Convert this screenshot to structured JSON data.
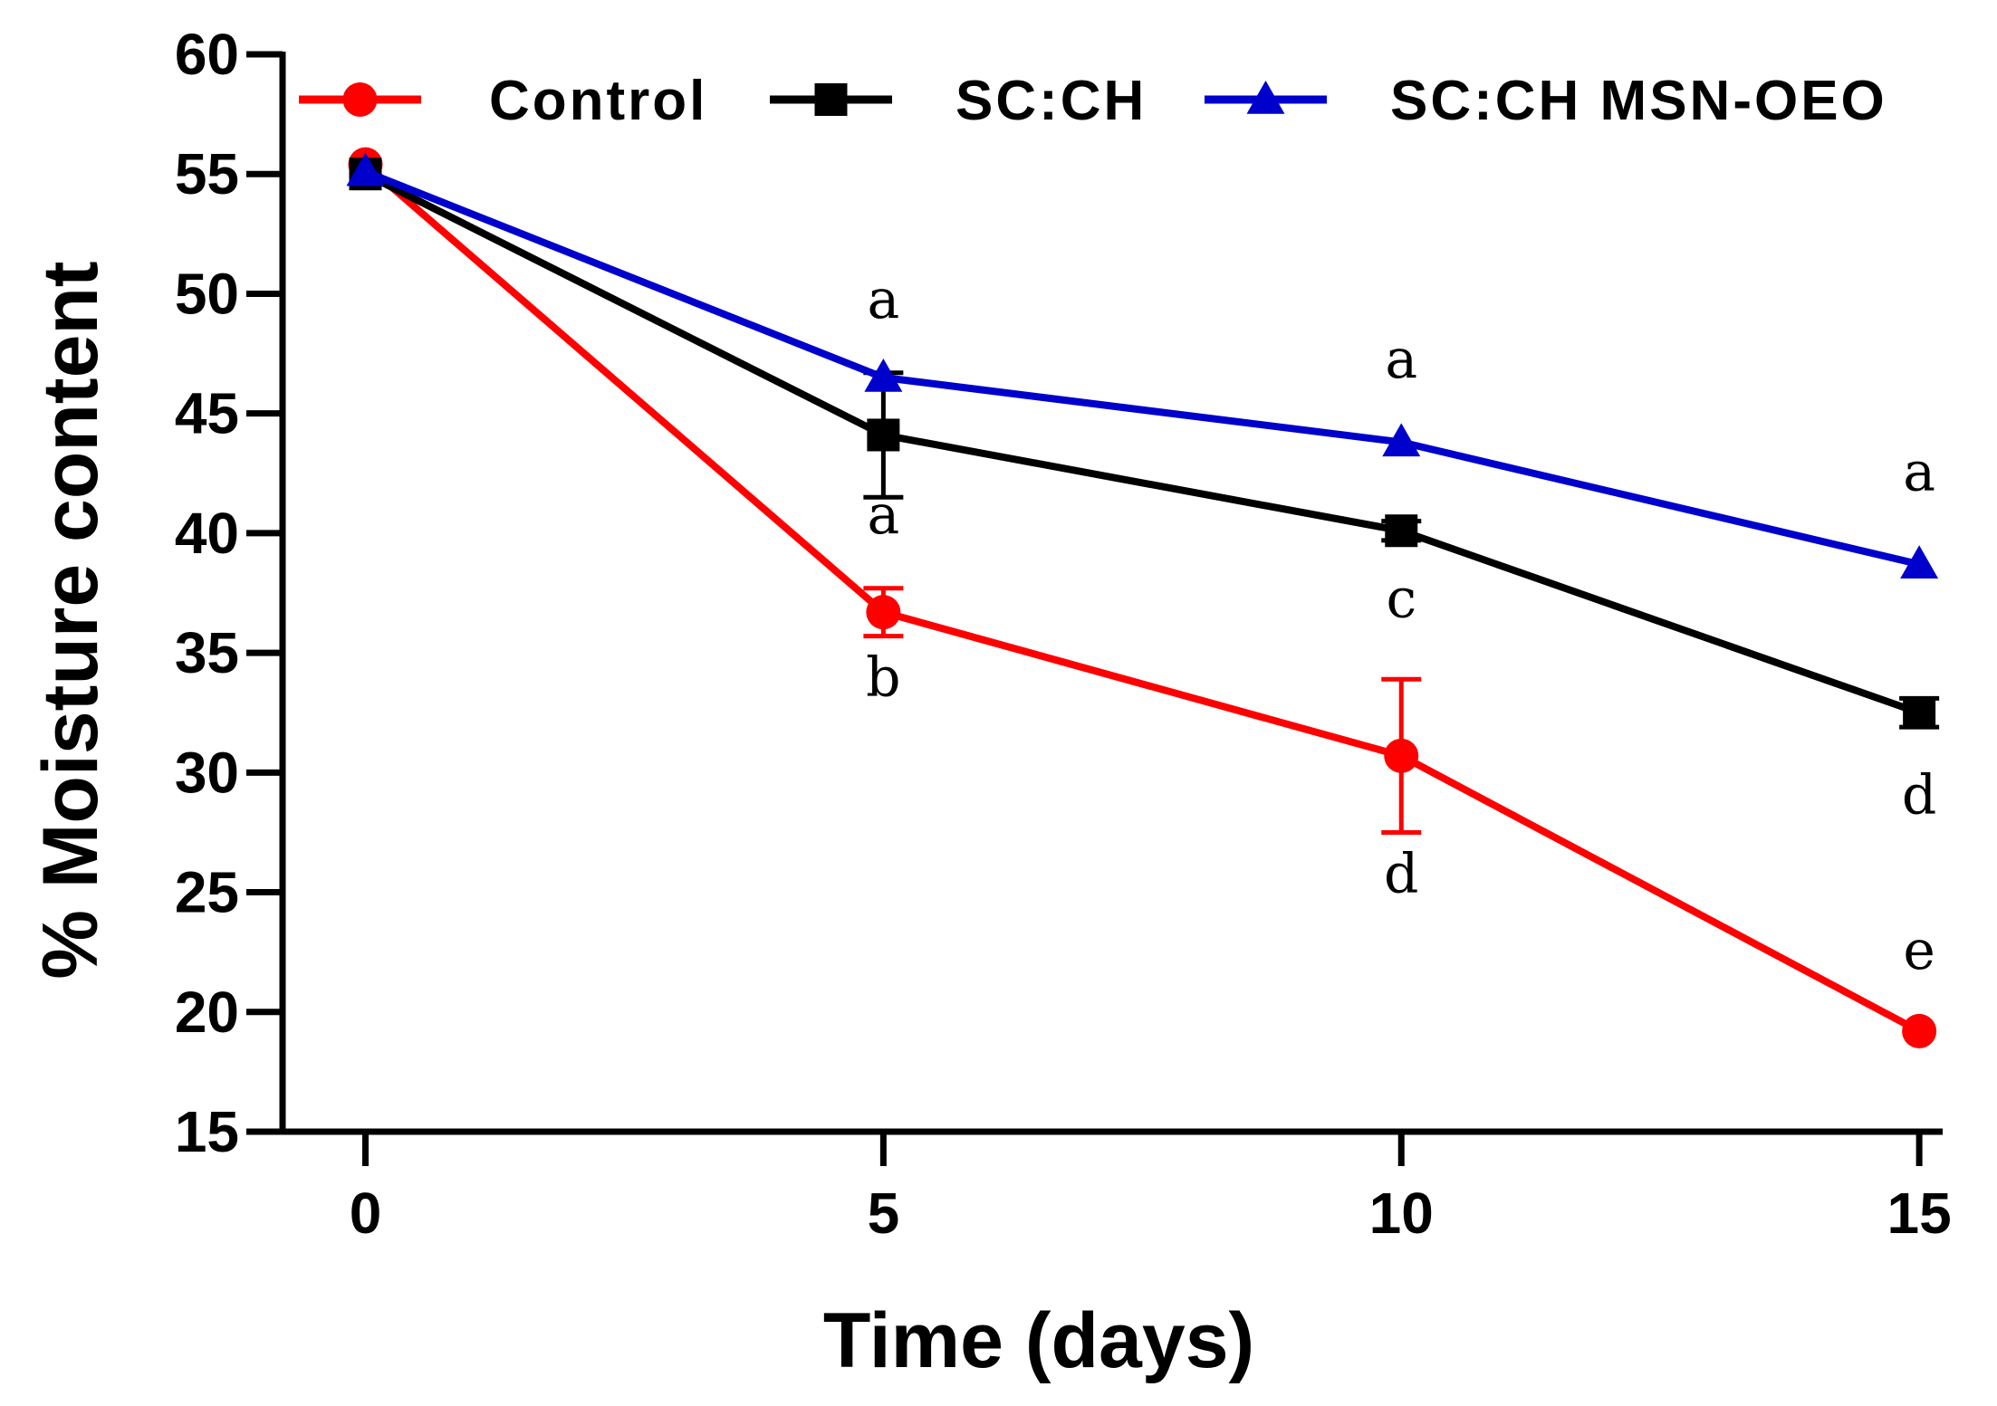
{
  "chart_data": {
    "type": "line",
    "title": "",
    "xlabel": "Time (days)",
    "ylabel": "% Moisture content",
    "x": [
      0,
      5,
      10,
      15
    ],
    "xticks": [
      "0",
      "5",
      "10",
      "15"
    ],
    "xlim": [
      -0.8,
      15.2
    ],
    "ylim": [
      15,
      60
    ],
    "yticks": [
      "15",
      "20",
      "25",
      "30",
      "35",
      "40",
      "45",
      "50",
      "55",
      "60"
    ],
    "grid": false,
    "legend_position": "top",
    "series": [
      {
        "name": "Control",
        "color": "#ff0000",
        "marker": "circle",
        "values": [
          55.4,
          36.7,
          30.7,
          19.2
        ],
        "errors": [
          0,
          1.0,
          3.2,
          0
        ],
        "letters": [
          {
            "x": 5,
            "y": 33.2,
            "text": "b"
          },
          {
            "x": 10,
            "y": 25.0,
            "text": "d"
          },
          {
            "x": 15,
            "y": 21.8,
            "text": "e"
          }
        ]
      },
      {
        "name": "SC:CH",
        "color": "#000000",
        "marker": "square",
        "values": [
          55.0,
          44.1,
          40.1,
          32.5
        ],
        "errors": [
          0,
          2.6,
          0.4,
          0.6
        ],
        "letters": [
          {
            "x": 5,
            "y": 40.0,
            "text": "a"
          },
          {
            "x": 10,
            "y": 36.5,
            "text": "c"
          },
          {
            "x": 15,
            "y": 28.3,
            "text": "d"
          }
        ]
      },
      {
        "name": "SC:CH MSN-OEO",
        "color": "#0000cc",
        "marker": "triangle",
        "values": [
          55.1,
          46.5,
          43.8,
          38.7
        ],
        "errors": [
          0,
          0,
          0,
          0
        ],
        "letters": [
          {
            "x": 5,
            "y": 49.0,
            "text": "a"
          },
          {
            "x": 10,
            "y": 46.5,
            "text": "a"
          },
          {
            "x": 15,
            "y": 41.8,
            "text": "a"
          }
        ]
      }
    ]
  }
}
